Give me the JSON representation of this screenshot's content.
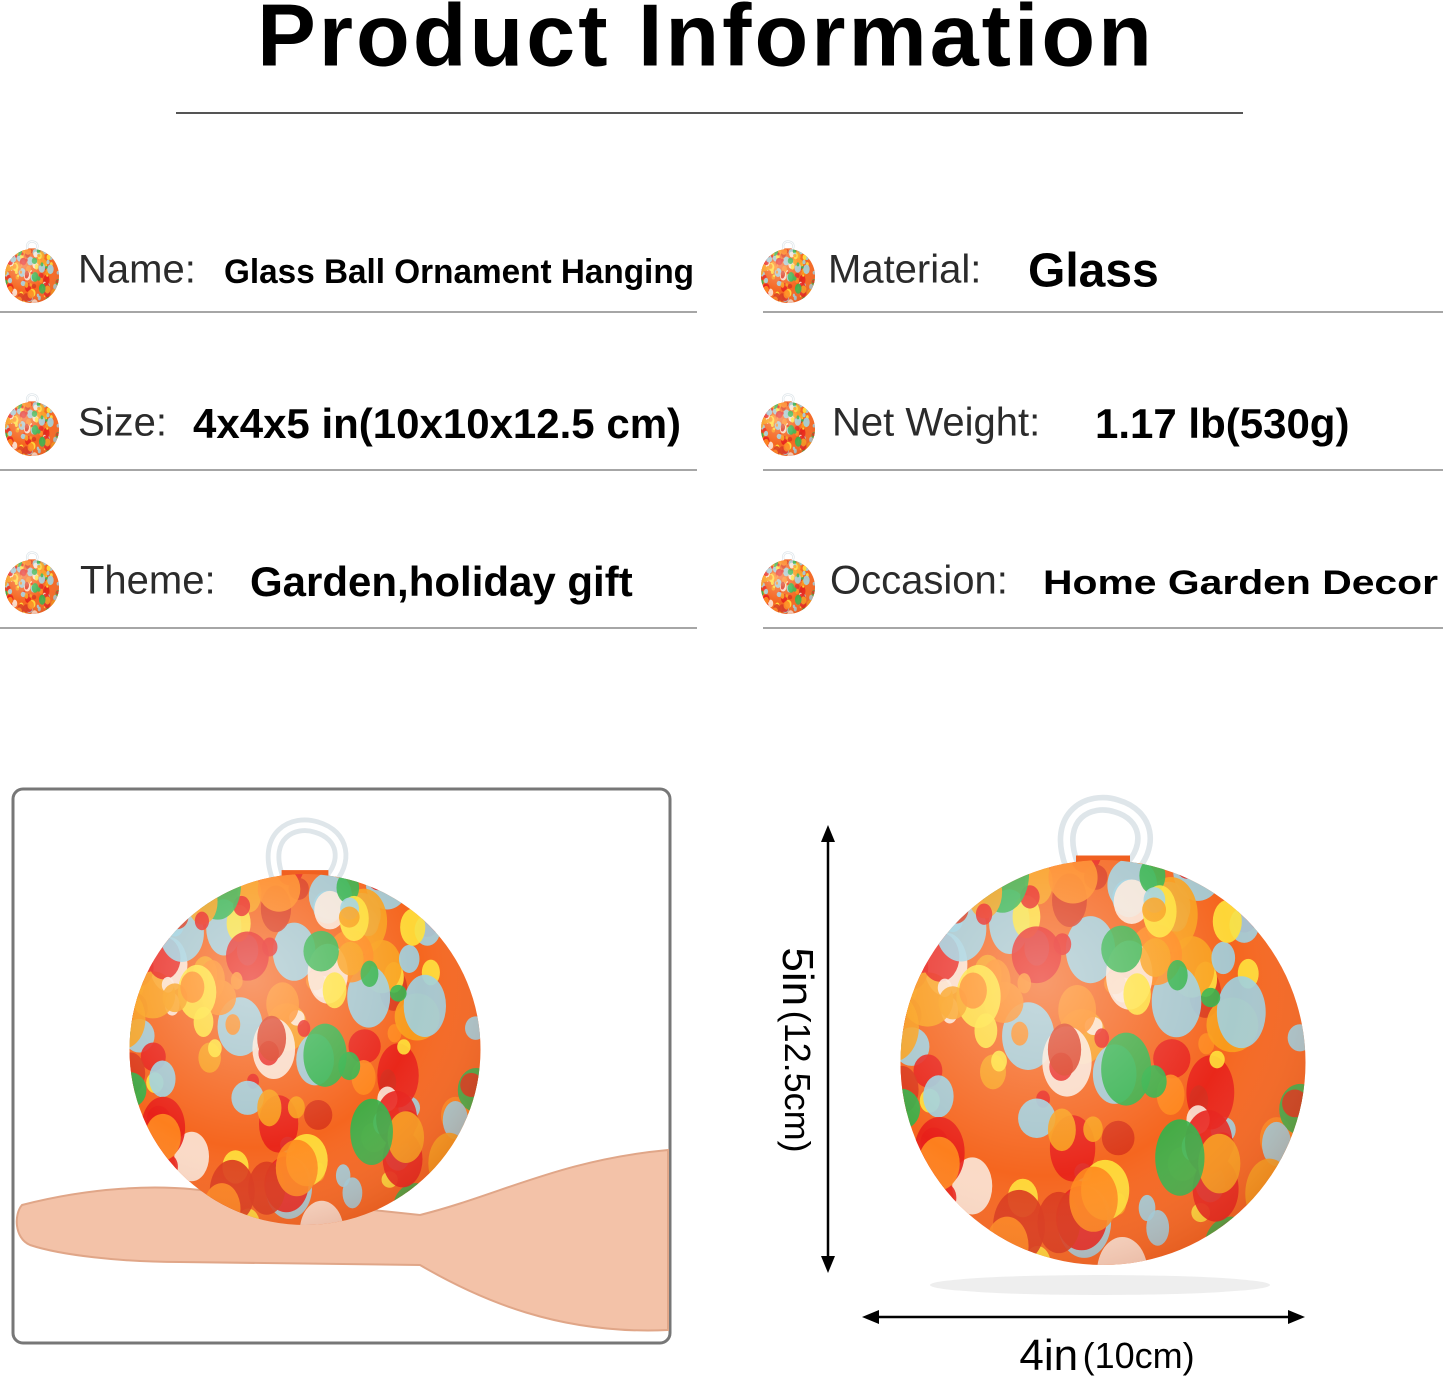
{
  "title": "Product Information",
  "specs": [
    {
      "label": "Name:",
      "value": "Glass Ball Ornament Hanging"
    },
    {
      "label": "Material:",
      "value": "Glass"
    },
    {
      "label": "Size:",
      "value": "4x4x5 in(10x10x12.5 cm)"
    },
    {
      "label": "Net Weight:",
      "value": "1.17 lb(530g)"
    },
    {
      "label": "Theme:",
      "value": "Garden,holiday gift"
    },
    {
      "label": "Occasion:",
      "value": "Home Garden Decor"
    }
  ],
  "dimensions": {
    "height": {
      "main": "5in",
      "detail": "(12.5cm)"
    },
    "width": {
      "main": "4in",
      "detail": "(10cm)"
    }
  }
}
